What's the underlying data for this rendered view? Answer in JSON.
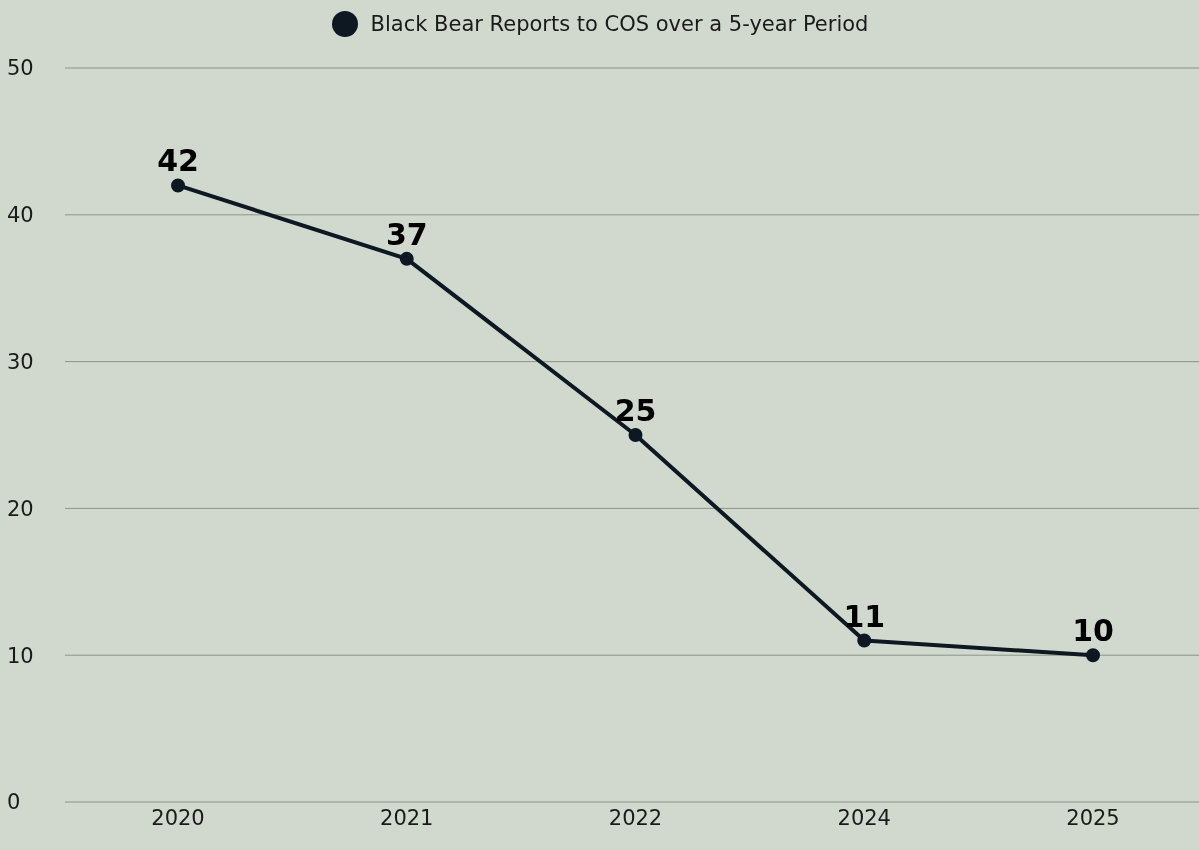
{
  "chart_data": {
    "type": "line",
    "categories": [
      "2020",
      "2021",
      "2022",
      "2024",
      "2025"
    ],
    "series": [
      {
        "name": "Black Bear Reports to COS over a 5-year Period",
        "color": "#0e1822",
        "values": [
          42,
          37,
          25,
          11,
          10
        ]
      }
    ],
    "ylim": [
      0,
      50
    ],
    "yticks": [
      0,
      10,
      20,
      30,
      40,
      50
    ],
    "grid": "y",
    "legend": "top",
    "marker": "circle",
    "line_style": "solid",
    "data_labels": true
  }
}
